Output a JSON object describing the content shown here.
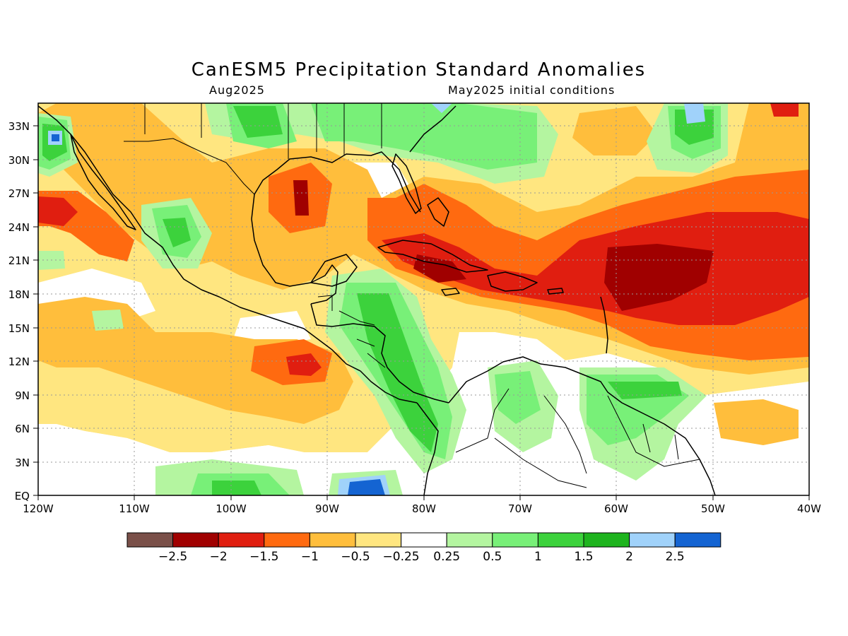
{
  "header": {
    "title": "CanESM5 Precipitation Standard Anomalies",
    "valid_month": "Aug2025",
    "init": "May2025 initial conditions"
  },
  "axes": {
    "lon_labels": [
      "120W",
      "110W",
      "100W",
      "90W",
      "80W",
      "70W",
      "60W",
      "50W",
      "40W"
    ],
    "lat_labels": [
      "EQ",
      "3N",
      "6N",
      "9N",
      "12N",
      "15N",
      "18N",
      "21N",
      "24N",
      "27N",
      "30N",
      "33N"
    ],
    "lon_range": [
      -120,
      -40
    ],
    "lat_range": [
      0,
      35
    ]
  },
  "colorbar": {
    "colors": [
      "#7a5049",
      "#a00000",
      "#e01e10",
      "#ff6a10",
      "#ffbe3c",
      "#ffe680",
      "#ffffff",
      "#b4f5a0",
      "#78f078",
      "#3cd23c",
      "#1eb41e",
      "#a0d2fa",
      "#1464d2"
    ],
    "labels": [
      "−2.5",
      "−2",
      "−1.5",
      "−1",
      "−0.5",
      "−0.25",
      "0.25",
      "0.5",
      "1",
      "1.5",
      "2",
      "2.5"
    ]
  },
  "colors": {
    "dry_light": "#ffe680",
    "dry_mod": "#ffbe3c",
    "dry_strong": "#ff6a10",
    "dry_vstrong": "#e01e10",
    "dry_extreme": "#a00000",
    "wet_light": "#b4f5a0",
    "wet_mod": "#78f078",
    "wet_strong": "#3cd23c",
    "wet_vstrong": "#1eb41e",
    "wet_extreme": "#a0d2fa",
    "wet_max": "#1464d2"
  }
}
